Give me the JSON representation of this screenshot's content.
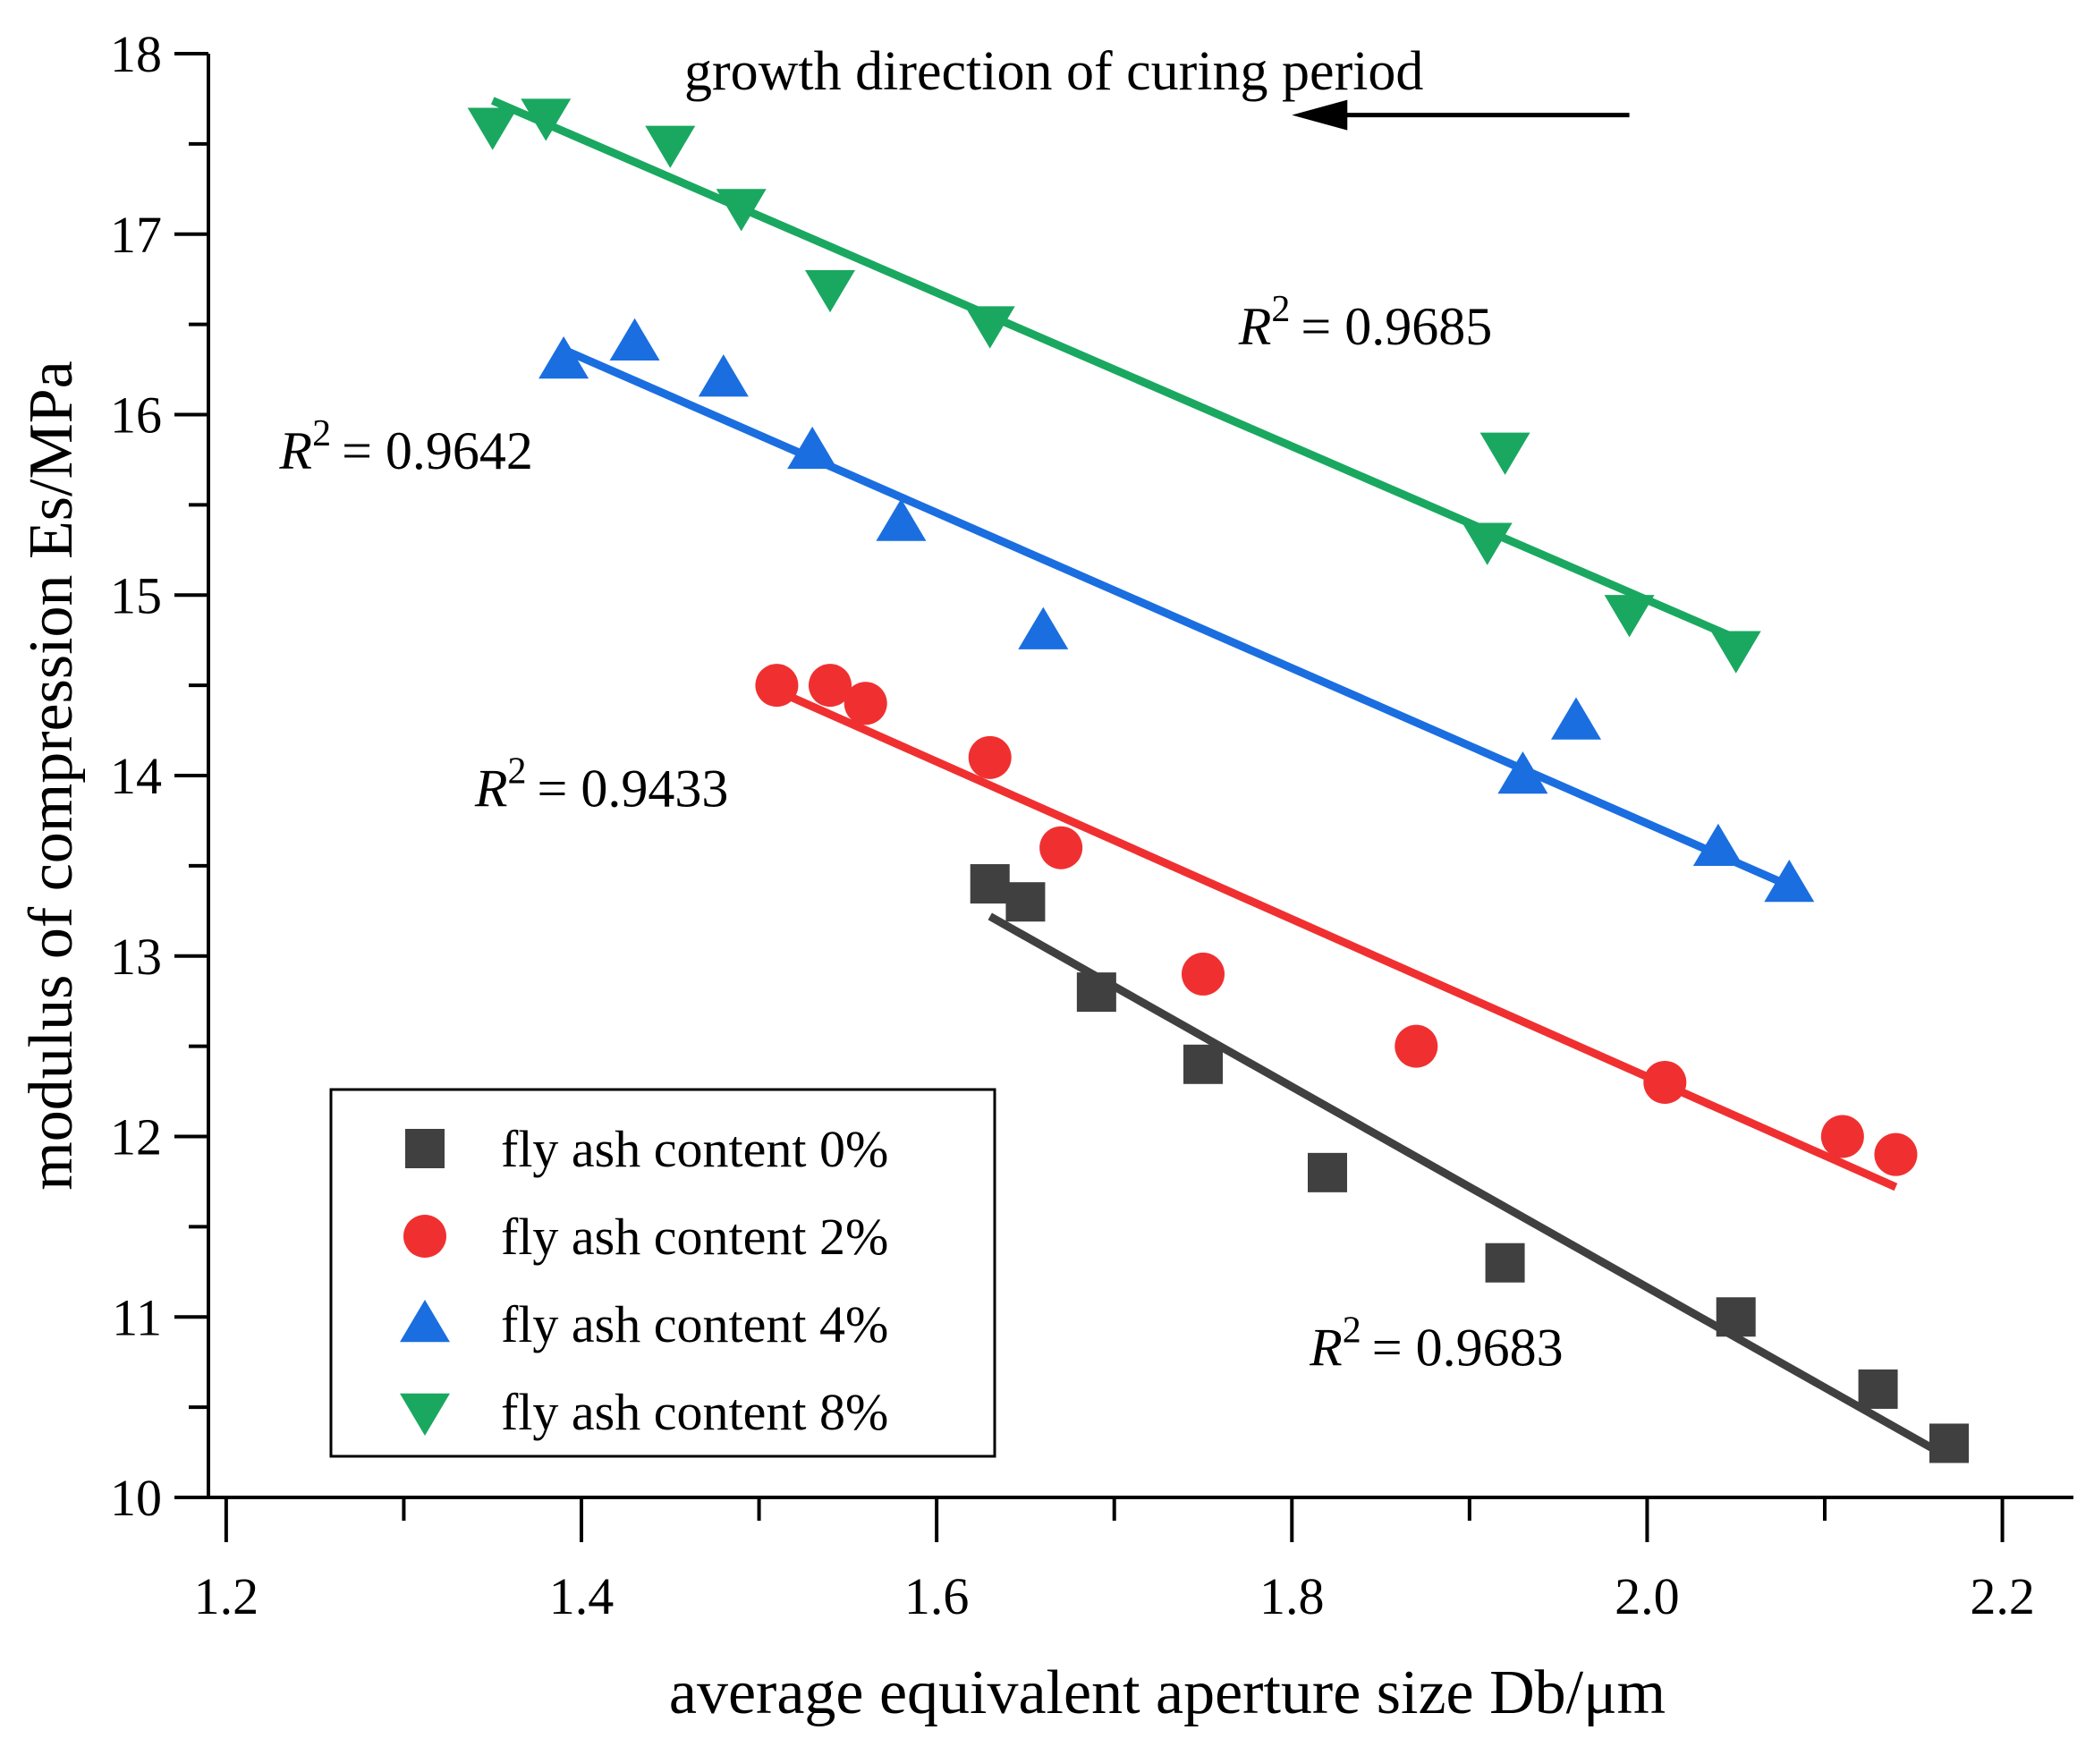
{
  "chart_data": {
    "type": "scatter",
    "title": "",
    "xlabel": "average equivalent aperture size Db/μm",
    "ylabel": "modulus of compression Es/MPa",
    "xlim": [
      1.19,
      2.24
    ],
    "ylim": [
      10,
      18
    ],
    "x_major_ticks": [
      1.2,
      1.4,
      1.6,
      1.8,
      2.0,
      2.2
    ],
    "x_minor_ticks": [
      1.3,
      1.5,
      1.7,
      1.9,
      2.1
    ],
    "x_tick_labels": [
      "1.2",
      "1.4",
      "1.6",
      "1.8",
      "2.0",
      "2.2"
    ],
    "y_ticks": [
      10,
      11,
      12,
      13,
      14,
      15,
      16,
      17,
      18
    ],
    "y_tick_labels": [
      "10",
      "11",
      "12",
      "13",
      "14",
      "15",
      "16",
      "17",
      "18"
    ],
    "y_minor_ticks": [
      10.5,
      11.5,
      12.5,
      13.5,
      14.5,
      15.5,
      16.5,
      17.5
    ],
    "grid": false,
    "legend_position": "bottom-left",
    "annotation": {
      "text": "growth direction of curing period",
      "arrow_from": [
        1.99,
        17.66
      ],
      "arrow_to": [
        1.8,
        17.66
      ]
    },
    "series": [
      {
        "name": "fly ash content 0%",
        "marker": "square",
        "color": "#404040",
        "x": [
          1.63,
          1.65,
          1.69,
          1.75,
          1.82,
          1.92,
          2.05,
          2.13,
          2.17
        ],
        "y": [
          13.4,
          13.3,
          12.8,
          12.4,
          11.8,
          11.3,
          11.0,
          10.6,
          10.3
        ],
        "fit": {
          "x": [
            1.63,
            2.17
          ],
          "y": [
            13.22,
            10.22
          ]
        },
        "r2_text": "= 0.9683",
        "r2_at": [
          1.81,
          10.73
        ]
      },
      {
        "name": "fly ash content 2%",
        "marker": "circle",
        "color": "#f03030",
        "x": [
          1.51,
          1.54,
          1.56,
          1.63,
          1.67,
          1.75,
          1.87,
          2.01,
          2.11,
          2.14
        ],
        "y": [
          14.5,
          14.5,
          14.4,
          14.1,
          13.6,
          12.9,
          12.5,
          12.3,
          12.0,
          11.9
        ],
        "fit": {
          "x": [
            1.51,
            2.14
          ],
          "y": [
            14.47,
            11.72
          ]
        },
        "r2_text": "= 0.9433",
        "r2_at": [
          1.34,
          13.83
        ]
      },
      {
        "name": "fly ash content 4%",
        "marker": "triangle-up",
        "color": "#1a6ee0",
        "x": [
          1.39,
          1.43,
          1.48,
          1.53,
          1.58,
          1.66,
          1.93,
          1.96,
          2.04,
          2.08
        ],
        "y": [
          16.3,
          16.4,
          16.2,
          15.8,
          15.4,
          14.8,
          14.0,
          14.3,
          13.6,
          13.4
        ],
        "fit": {
          "x": [
            1.39,
            2.08
          ],
          "y": [
            16.36,
            13.39
          ]
        },
        "r2_text": "= 0.9642",
        "r2_at": [
          1.23,
          15.7
        ]
      },
      {
        "name": "fly ash content 8%",
        "marker": "triangle-down",
        "color": "#1aa860",
        "x": [
          1.35,
          1.38,
          1.45,
          1.49,
          1.54,
          1.63,
          1.91,
          1.92,
          1.99,
          2.05
        ],
        "y": [
          17.6,
          17.65,
          17.5,
          17.15,
          16.7,
          16.5,
          15.3,
          15.8,
          14.9,
          14.7
        ],
        "fit": {
          "x": [
            1.35,
            2.05
          ],
          "y": [
            17.74,
            14.76
          ]
        },
        "r2_text": "= 0.9685",
        "r2_at": [
          1.77,
          16.39
        ]
      }
    ],
    "r2_symbol": "R",
    "r2_superscript": "2"
  }
}
